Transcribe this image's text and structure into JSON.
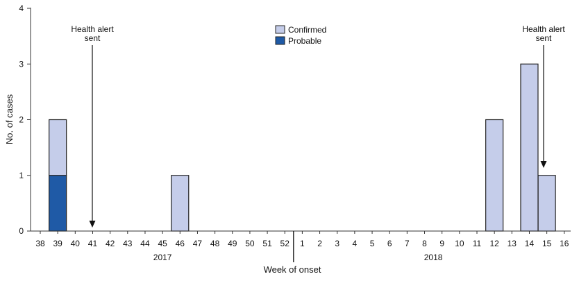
{
  "chart_data": {
    "type": "bar",
    "stacked": true,
    "categories": [
      "38",
      "39",
      "40",
      "41",
      "42",
      "43",
      "44",
      "45",
      "46",
      "47",
      "48",
      "49",
      "50",
      "51",
      "52",
      "1",
      "2",
      "3",
      "4",
      "5",
      "6",
      "7",
      "8",
      "9",
      "10",
      "11",
      "12",
      "13",
      "14",
      "15",
      "16"
    ],
    "series": [
      {
        "name": "Probable",
        "color": "#1f5aa6",
        "values": [
          0,
          1,
          0,
          0,
          0,
          0,
          0,
          0,
          0,
          0,
          0,
          0,
          0,
          0,
          0,
          0,
          0,
          0,
          0,
          0,
          0,
          0,
          0,
          0,
          0,
          0,
          0,
          0,
          0,
          0,
          0
        ]
      },
      {
        "name": "Confirmed",
        "color": "#c5cdea",
        "values": [
          0,
          1,
          0,
          0,
          0,
          0,
          0,
          0,
          1,
          0,
          0,
          0,
          0,
          0,
          0,
          0,
          0,
          0,
          0,
          0,
          0,
          0,
          0,
          0,
          0,
          0,
          2,
          0,
          3,
          1,
          0
        ]
      }
    ],
    "legend_order": [
      "Confirmed",
      "Probable"
    ],
    "legend_position": "top-center",
    "xlabel": "Week of onset",
    "ylabel": "No. of cases",
    "ylim": [
      0,
      4
    ],
    "yticks": [
      0,
      1,
      2,
      3,
      4
    ],
    "year_groups": [
      {
        "label": "2017",
        "from": "38",
        "to": "52"
      },
      {
        "label": "2018",
        "from": "1",
        "to": "16"
      }
    ],
    "annotations": [
      {
        "lines": [
          "Health alert",
          "sent"
        ],
        "at_week": "41"
      },
      {
        "lines": [
          "Health alert",
          "sent"
        ],
        "at_week": "15"
      }
    ],
    "grid": false
  }
}
